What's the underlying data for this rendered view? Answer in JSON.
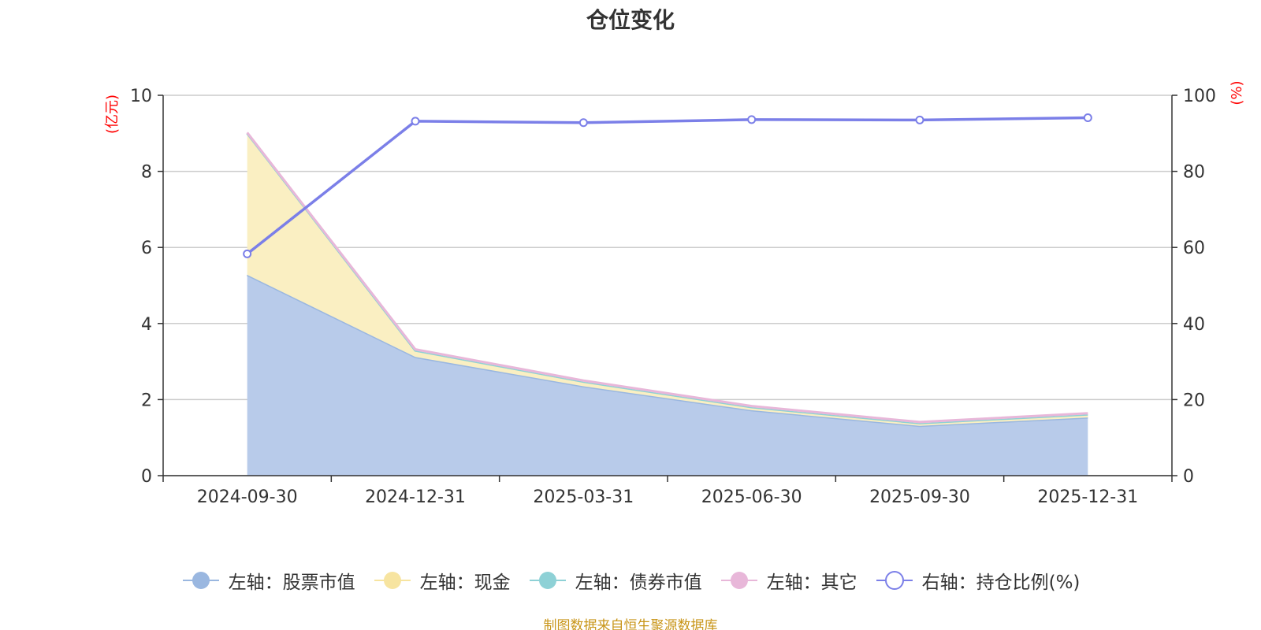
{
  "chart_data": {
    "type": "area",
    "title": "仓位变化",
    "categories": [
      "2024-09-30",
      "2024-12-31",
      "2025-03-31",
      "2025-06-30",
      "2025-09-30",
      "2025-12-31"
    ],
    "y_left": {
      "unit": "(亿元)",
      "range": [
        0,
        10
      ],
      "ticks": [
        0,
        2,
        4,
        6,
        8,
        10
      ]
    },
    "y_right": {
      "unit": "(%)",
      "range": [
        0,
        100
      ],
      "ticks": [
        0,
        20,
        40,
        60,
        80,
        100
      ]
    },
    "stacked": true,
    "grid": true,
    "legend_position": "bottom",
    "series": [
      {
        "name": "左轴：股票市值",
        "axis": "left",
        "kind": "area",
        "color": "#9ab7e0",
        "fill": "#b8cbea",
        "values": [
          5.28,
          3.12,
          2.35,
          1.72,
          1.31,
          1.53
        ]
      },
      {
        "name": "左轴：现金",
        "axis": "left",
        "kind": "area",
        "color": "#f7e4a0",
        "fill": "#faefc2",
        "values": [
          3.72,
          0.17,
          0.12,
          0.08,
          0.07,
          0.08
        ]
      },
      {
        "name": "左轴：债券市值",
        "axis": "left",
        "kind": "area",
        "color": "#8ed1d6",
        "fill": "#bfe6e9",
        "values": [
          0,
          0,
          0,
          0,
          0,
          0
        ]
      },
      {
        "name": "左轴：其它",
        "axis": "left",
        "kind": "area",
        "color": "#e8b7d9",
        "fill": "#f3d6ea",
        "values": [
          0.02,
          0.03,
          0.03,
          0.03,
          0.03,
          0.03
        ]
      },
      {
        "name": "右轴：持仓比例(%)",
        "axis": "right",
        "kind": "line",
        "color": "#7b7fe8",
        "values": [
          58.3,
          93.2,
          92.8,
          93.6,
          93.5,
          94.1
        ]
      }
    ]
  },
  "source_note": "制图数据来自恒生聚源数据库"
}
